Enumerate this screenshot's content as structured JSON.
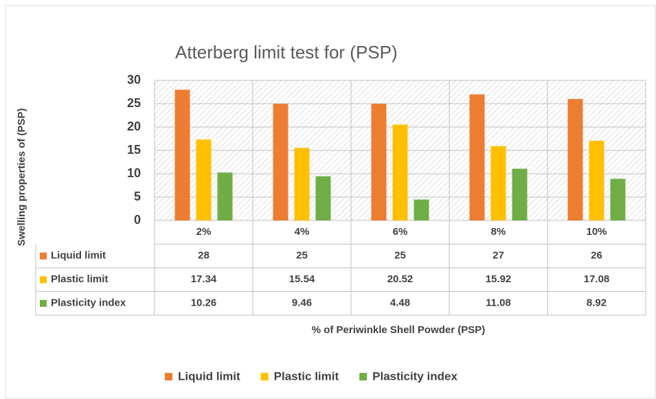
{
  "chart_data": {
    "type": "bar",
    "title": "Atterberg limit test for (PSP)",
    "x_label": "% of Periwinkle Shell Powder (PSP)",
    "y_label": "Swelling properties of (PSP)",
    "categories": [
      "2%",
      "4%",
      "6%",
      "8%",
      "10%"
    ],
    "series": [
      {
        "name": "Liquid limit",
        "color": "#ed7d31",
        "values": [
          28,
          25,
          25,
          27,
          26
        ]
      },
      {
        "name": "Plastic limit",
        "color": "#ffc000",
        "values": [
          17.34,
          15.54,
          20.52,
          15.92,
          17.08
        ]
      },
      {
        "name": "Plasticity index",
        "color": "#70ad47",
        "values": [
          10.26,
          9.46,
          4.48,
          11.08,
          8.92
        ]
      }
    ],
    "ylim": [
      0,
      30
    ],
    "yticks": [
      0,
      5,
      10,
      15,
      20,
      25,
      30
    ],
    "grid": true,
    "legend": "bottom",
    "data_table": true
  }
}
